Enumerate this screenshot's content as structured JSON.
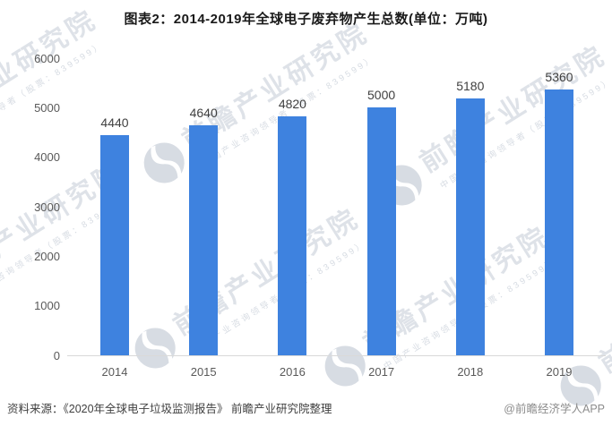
{
  "title": "图表2：2014-2019年全球电子废弃物产生总数(单位：万吨)",
  "footer": {
    "source": "资料来源：《2020年全球电子垃圾监测报告》 前瞻产业研究院整理",
    "credit": "@前瞻经济学人APP"
  },
  "watermark": {
    "brand": "前瞻产业研究院",
    "tagline": "中国产业咨询领导者（股票：839599）"
  },
  "colors": {
    "bar": "#3E82DF",
    "axis_line": "#d9d9d9",
    "tick_label": "#595959",
    "value_label": "#3f3f3f",
    "title": "#1a1a1a",
    "watermark": "#b0bac8"
  },
  "chart_data": {
    "type": "bar",
    "title": "图表2：2014-2019年全球电子废弃物产生总数(单位：万吨)",
    "unit": "万吨",
    "categories": [
      "2014",
      "2015",
      "2016",
      "2017",
      "2018",
      "2019"
    ],
    "values": [
      4440,
      4640,
      4820,
      5000,
      5180,
      5360
    ],
    "xlabel": "",
    "ylabel": "",
    "ylim": [
      0,
      6000
    ],
    "yticks": [
      0,
      1000,
      2000,
      3000,
      4000,
      5000,
      6000
    ],
    "grid": false,
    "legend": false,
    "value_labels_shown": true
  }
}
